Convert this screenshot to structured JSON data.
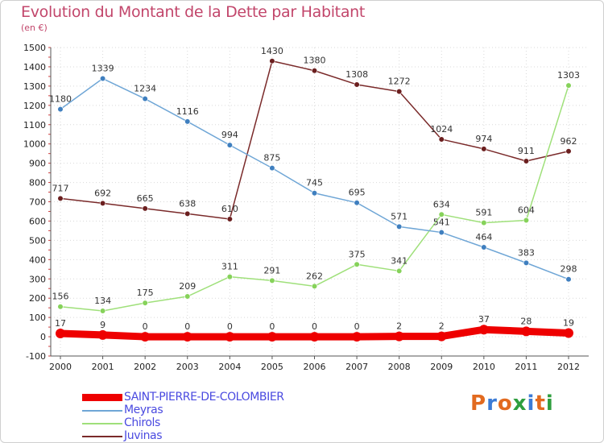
{
  "header": {
    "title": "Evolution du Montant de la Dette par Habitant",
    "unit": "(en €)"
  },
  "logo": {
    "text": "Proxiti",
    "letter_colors": [
      "#e26a1f",
      "#3b7bd6",
      "#e26a1f",
      "#2e9e3e",
      "#3b7bd6",
      "#e26a1f",
      "#2e9e3e"
    ]
  },
  "chart_data": {
    "type": "line",
    "title": "Evolution du Montant de la Dette par Habitant",
    "subtitle": "(en €)",
    "x": [
      "2000",
      "2001",
      "2002",
      "2003",
      "2004",
      "2005",
      "2006",
      "2007",
      "2008",
      "2009",
      "2010",
      "2011",
      "2012"
    ],
    "ylim": [
      -100,
      1500
    ],
    "yticks": [
      -100,
      0,
      100,
      200,
      300,
      400,
      500,
      600,
      700,
      800,
      900,
      1000,
      1100,
      1200,
      1300,
      1400,
      1500
    ],
    "grid": true,
    "legend_position": "bottom-left",
    "series": [
      {
        "name": "Juvinas",
        "color": "#7a2a2a",
        "marker": "#6b1f1f",
        "values": [
          717,
          692,
          665,
          638,
          610,
          1430,
          1380,
          1308,
          1272,
          1024,
          974,
          911,
          962
        ]
      },
      {
        "name": "Chirols",
        "color": "#9fe07a",
        "marker": "#86d25a",
        "values": [
          156,
          134,
          175,
          209,
          311,
          291,
          262,
          375,
          341,
          634,
          591,
          604,
          1303
        ]
      },
      {
        "name": "Meyras",
        "color": "#6fa6d6",
        "marker": "#3f7fbf",
        "values": [
          1180,
          1339,
          1234,
          1116,
          994,
          875,
          745,
          695,
          571,
          541,
          464,
          383,
          298
        ]
      },
      {
        "name": "SAINT-PIERRE-DE-COLOMBIER",
        "color": "#ee0000",
        "marker": "#ee0000",
        "thick": true,
        "values": [
          17,
          9,
          0,
          0,
          0,
          0,
          0,
          0,
          2,
          2,
          37,
          28,
          19
        ]
      }
    ],
    "legend_order": [
      "SAINT-PIERRE-DE-COLOMBIER",
      "Meyras",
      "Chirols",
      "Juvinas"
    ]
  }
}
